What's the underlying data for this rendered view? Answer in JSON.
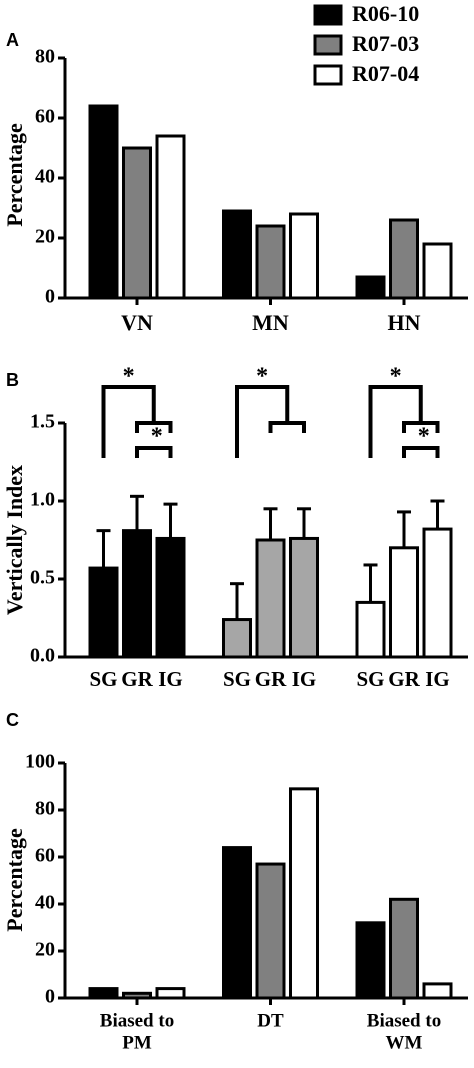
{
  "chart_data": [
    {
      "type": "grouped-bar",
      "panel": "A",
      "ylabel": "Percentage",
      "categories": [
        "VN",
        "MN",
        "HN"
      ],
      "series": [
        {
          "name": "R06-10",
          "color": "#000000",
          "values": [
            64,
            29,
            7
          ]
        },
        {
          "name": "R07-03",
          "color": "#808080",
          "values": [
            50,
            24,
            26
          ]
        },
        {
          "name": "R07-04",
          "color": "#ffffff",
          "values": [
            54,
            28,
            18
          ]
        }
      ],
      "ylim": [
        0,
        80
      ],
      "yticks": [
        0,
        20,
        40,
        60,
        80
      ],
      "legend": "top-right"
    },
    {
      "type": "error-bar",
      "panel": "B",
      "ylabel": "Vertically Index",
      "categories": [
        "SG",
        "GR",
        "IG",
        "SG",
        "GR",
        "IG",
        "SG",
        "GR",
        "IG"
      ],
      "values": [
        0.57,
        0.81,
        0.76,
        0.24,
        0.75,
        0.76,
        0.35,
        0.7,
        0.82
      ],
      "errors": [
        0.24,
        0.22,
        0.22,
        0.23,
        0.2,
        0.19,
        0.24,
        0.23,
        0.18
      ],
      "colors": [
        "#000000",
        "#000000",
        "#000000",
        "#a6a6a6",
        "#a6a6a6",
        "#a6a6a6",
        "#ffffff",
        "#ffffff",
        "#ffffff"
      ],
      "significance_labels": [
        "*",
        "*",
        "*",
        "*",
        "*"
      ],
      "ylim": [
        0,
        1.5
      ],
      "yticks": [
        {
          "value": 0,
          "label": "0.0"
        },
        {
          "value": 0.5,
          "label": "0.5"
        },
        {
          "value": 1,
          "label": "1.0"
        },
        {
          "value": 1.5,
          "label": "1.5"
        }
      ]
    },
    {
      "type": "grouped-bar",
      "panel": "C",
      "ylabel": "Percentage",
      "categories": [
        [
          "Biased to",
          "PM"
        ],
        [
          "DT"
        ],
        [
          "Biased to",
          "WM"
        ]
      ],
      "series": [
        {
          "color": "#000000",
          "values": [
            4,
            64,
            32
          ]
        },
        {
          "color": "#808080",
          "values": [
            2,
            57,
            42
          ]
        },
        {
          "color": "#ffffff",
          "values": [
            4,
            89,
            6
          ]
        }
      ],
      "ylim": [
        0,
        100
      ],
      "yticks": [
        0,
        20,
        40,
        60,
        80,
        100
      ]
    }
  ]
}
